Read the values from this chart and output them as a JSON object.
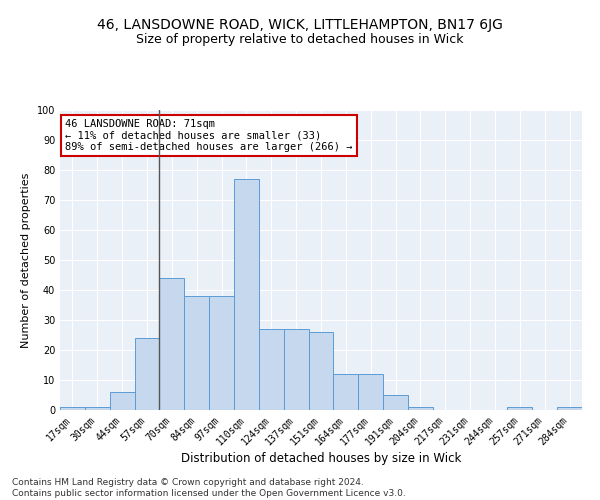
{
  "title": "46, LANSDOWNE ROAD, WICK, LITTLEHAMPTON, BN17 6JG",
  "subtitle": "Size of property relative to detached houses in Wick",
  "xlabel": "Distribution of detached houses by size in Wick",
  "ylabel": "Number of detached properties",
  "categories": [
    "17sqm",
    "30sqm",
    "44sqm",
    "57sqm",
    "70sqm",
    "84sqm",
    "97sqm",
    "110sqm",
    "124sqm",
    "137sqm",
    "151sqm",
    "164sqm",
    "177sqm",
    "191sqm",
    "204sqm",
    "217sqm",
    "231sqm",
    "244sqm",
    "257sqm",
    "271sqm",
    "284sqm"
  ],
  "values": [
    1,
    1,
    6,
    24,
    44,
    38,
    38,
    77,
    27,
    27,
    26,
    12,
    12,
    5,
    1,
    0,
    0,
    0,
    1,
    0,
    1
  ],
  "bar_color": "#c5d8ed",
  "bar_edge_color": "#5b9bd5",
  "highlight_line_color": "#555555",
  "annotation_box_text": "46 LANSDOWNE ROAD: 71sqm\n← 11% of detached houses are smaller (33)\n89% of semi-detached houses are larger (266) →",
  "annotation_box_color": "#ffffff",
  "annotation_box_edge_color": "#cc0000",
  "background_color": "#ffffff",
  "plot_bg_color": "#eaf0f8",
  "grid_color": "#ffffff",
  "footer_text": "Contains HM Land Registry data © Crown copyright and database right 2024.\nContains public sector information licensed under the Open Government Licence v3.0.",
  "ylim": [
    0,
    100
  ],
  "yticks": [
    0,
    10,
    20,
    30,
    40,
    50,
    60,
    70,
    80,
    90,
    100
  ],
  "title_fontsize": 10,
  "subtitle_fontsize": 9,
  "xlabel_fontsize": 8.5,
  "ylabel_fontsize": 8,
  "tick_fontsize": 7,
  "footer_fontsize": 6.5,
  "annot_fontsize": 7.5
}
